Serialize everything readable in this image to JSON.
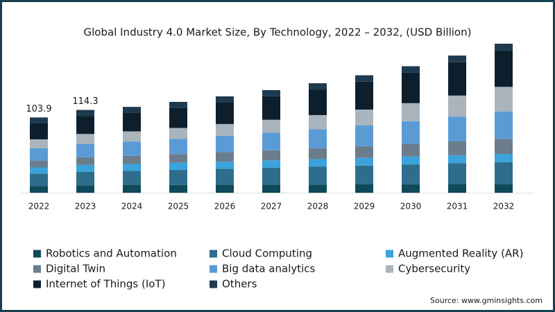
{
  "chart_data": {
    "type": "stacked_bar",
    "title": "Global Industry 4.0 Market Size, By Technology, 2022 – 2032, (USD Billion)",
    "source": "Source: www.gminsights.com",
    "categories": [
      "2022",
      "2023",
      "2024",
      "2025",
      "2026",
      "2027",
      "2028",
      "2029",
      "2030",
      "2031",
      "2032"
    ],
    "series": [
      {
        "name": "Robotics and Automation",
        "color": "#0e4a5a",
        "values": [
          9.4,
          10.3,
          10.5,
          10.7,
          10.9,
          11.1,
          11.3,
          11.5,
          11.7,
          11.9,
          12.1
        ]
      },
      {
        "name": "Cloud Computing",
        "color": "#2e6d8c",
        "values": [
          17,
          18.7,
          19.6,
          20.8,
          22,
          23.3,
          24.6,
          26,
          27.4,
          28.9,
          30.2
        ]
      },
      {
        "name": "Augmented Reality (AR)",
        "color": "#3aa3dc",
        "values": [
          8.5,
          9.4,
          9.6,
          9.8,
          10,
          10.2,
          10.4,
          10.6,
          10.8,
          11,
          11.2
        ]
      },
      {
        "name": "Digital Twin",
        "color": "#6b7d8c",
        "values": [
          9.5,
          10.5,
          11.2,
          12.1,
          13,
          14,
          15,
          16.2,
          17.5,
          19,
          20.8
        ]
      },
      {
        "name": "Big data analytics",
        "color": "#5b9bd5",
        "values": [
          17,
          18.7,
          19.8,
          21,
          22.6,
          24.3,
          26.3,
          28.5,
          31.2,
          34.3,
          37.8
        ]
      },
      {
        "name": "Cybersecurity",
        "color": "#a9b4bd",
        "values": [
          12.3,
          13.5,
          14,
          15,
          16.3,
          17.8,
          19.6,
          22,
          25,
          29,
          34
        ]
      },
      {
        "name": "Internet of Things (IoT)",
        "color": "#0d1f2d",
        "values": [
          22.7,
          25,
          26,
          28,
          30,
          32.5,
          35.3,
          38.5,
          42,
          46,
          50.1
        ]
      },
      {
        "name": "Others",
        "color": "#1e3a4f",
        "values": [
          7.5,
          8.2,
          7.8,
          8,
          8.2,
          8.4,
          8.6,
          8.8,
          9,
          9.2,
          9.5
        ]
      }
    ],
    "totals": [
      103.9,
      114.3
    ]
  }
}
